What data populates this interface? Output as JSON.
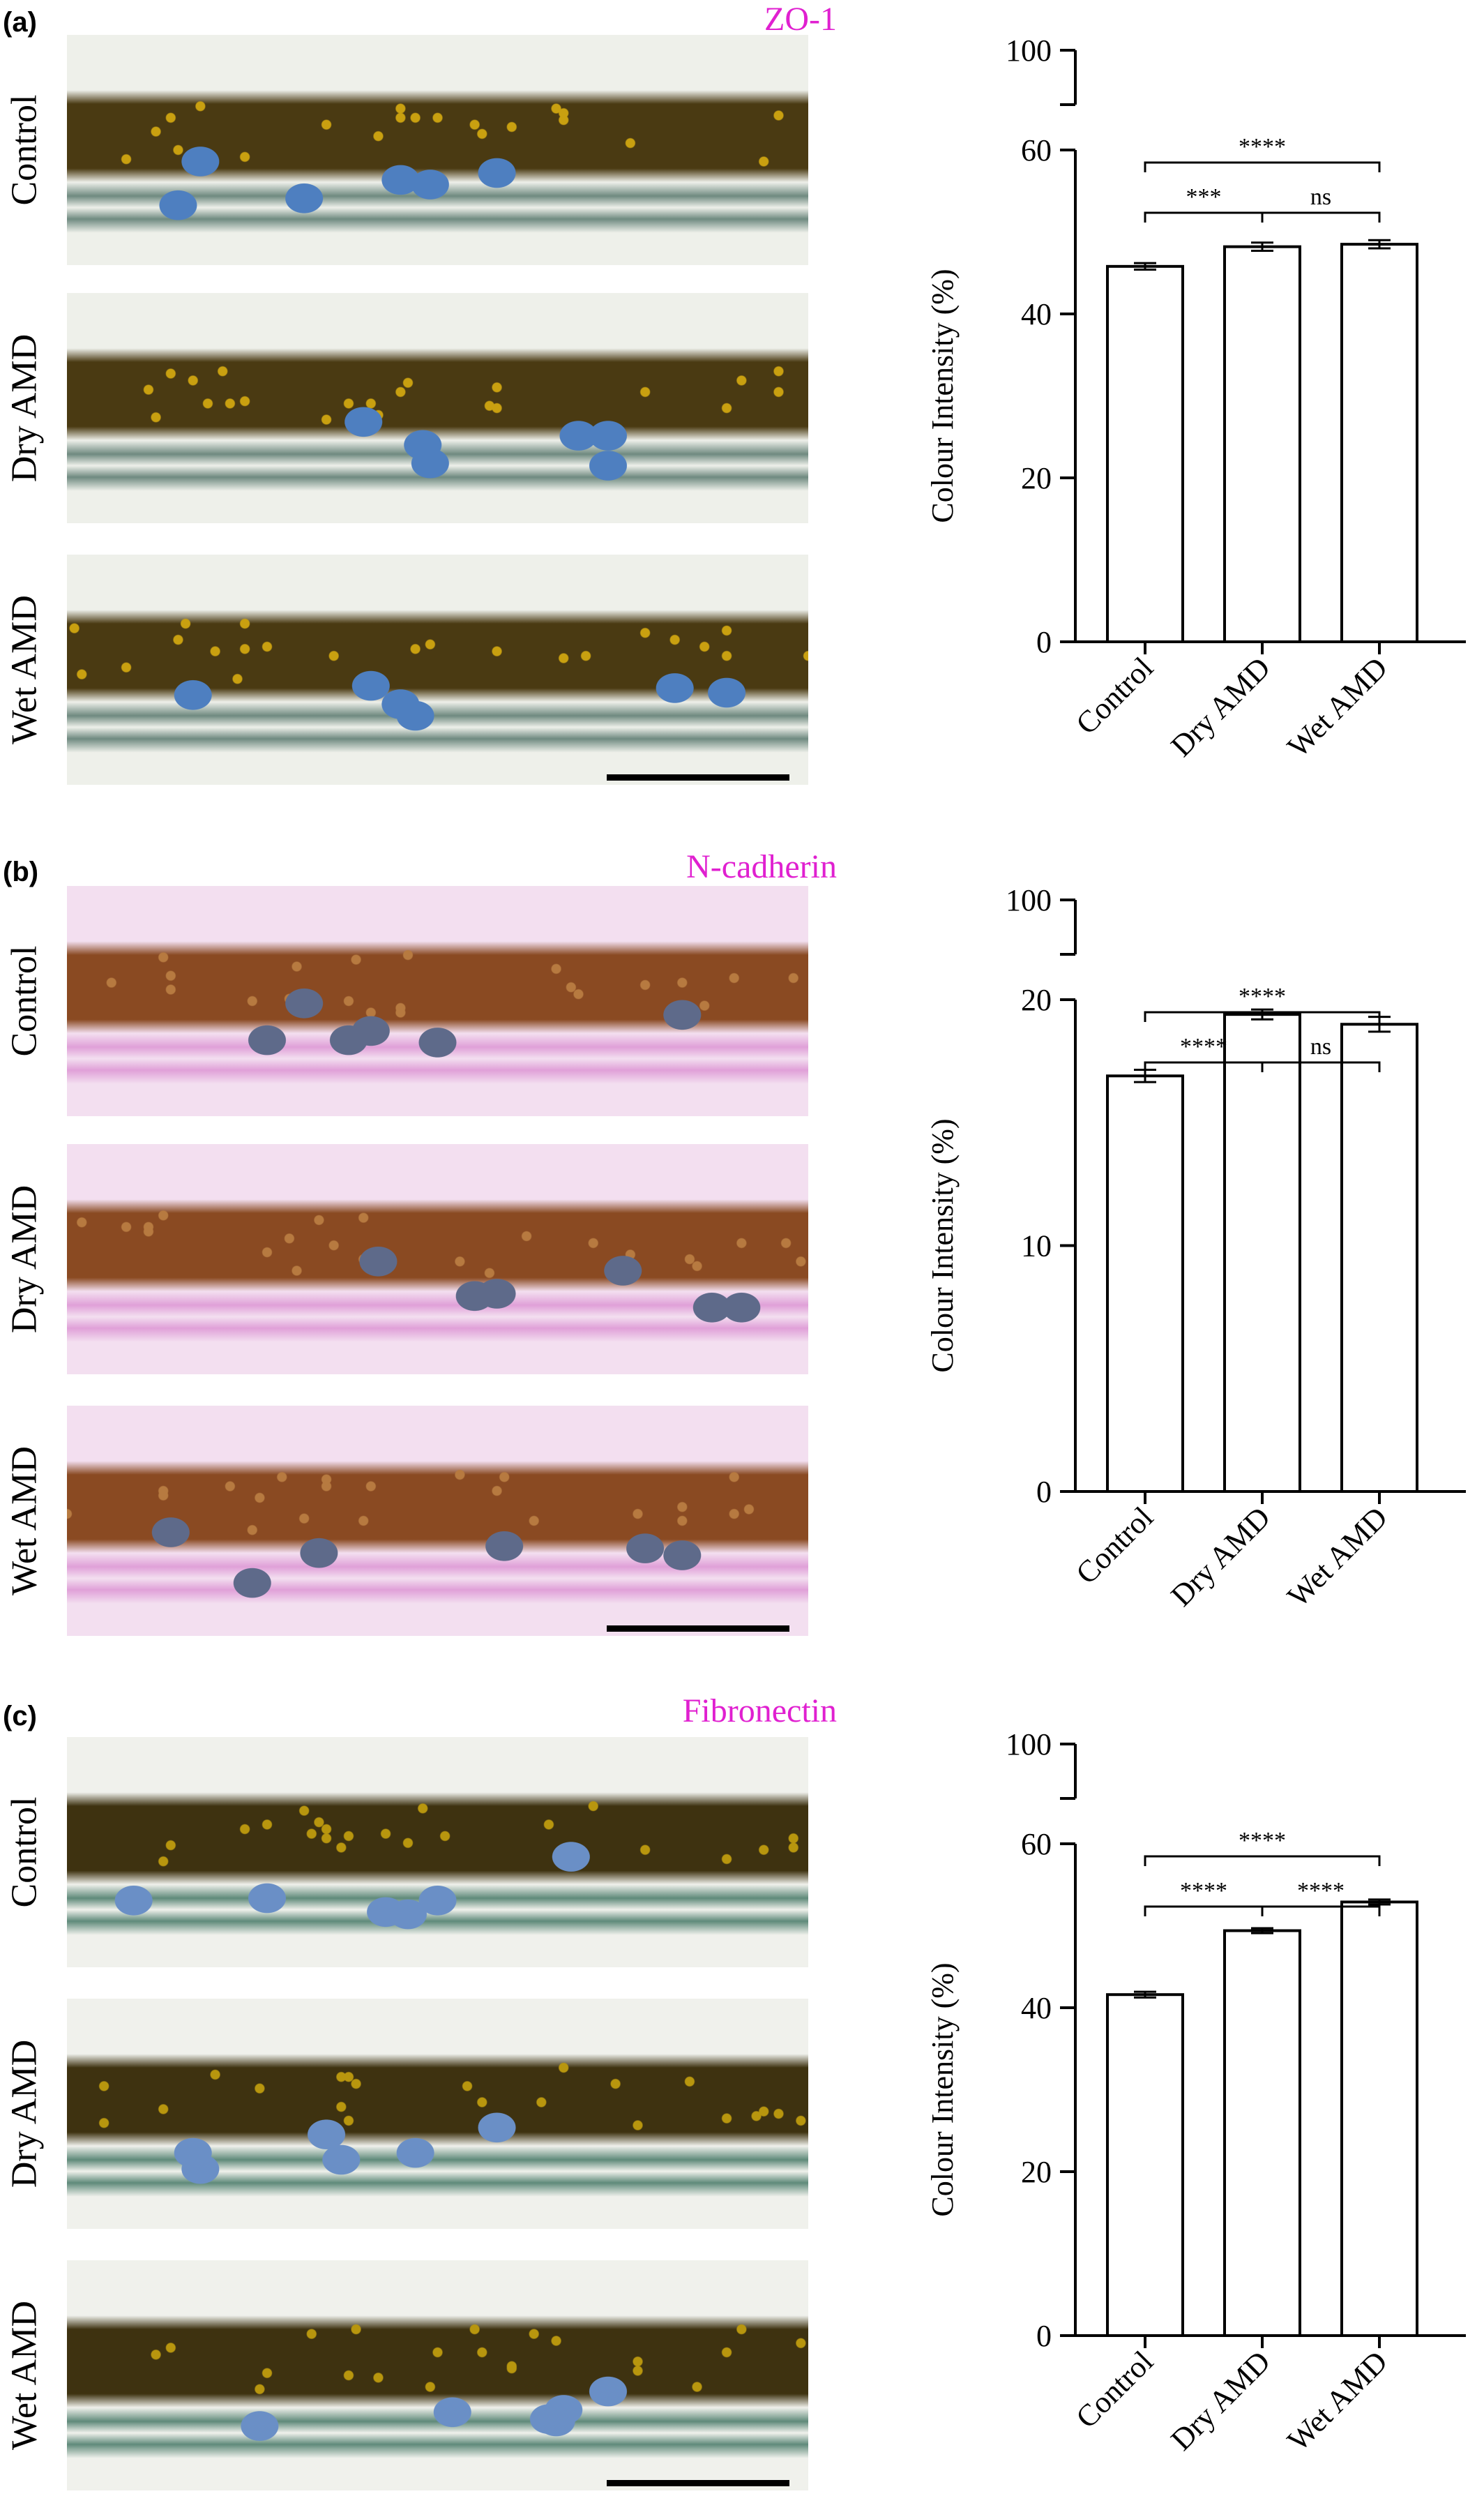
{
  "panels": [
    {
      "letter": "(a)",
      "stain": "ZO-1",
      "row_labels": [
        "Control",
        "Dry AMD",
        "Wet AMD"
      ],
      "colors": {
        "band": "#4a3a12",
        "band_spot": "#c9a010",
        "nucleus": "#4e7fc0",
        "bg": "#eef0ea",
        "membrane": "#6f8a80"
      },
      "chart_data": {
        "type": "bar",
        "categories": [
          "Control",
          "Dry AMD",
          "Wet AMD"
        ],
        "values": [
          45.8,
          48.2,
          48.5
        ],
        "errors": [
          0.4,
          0.5,
          0.5
        ],
        "ylabel": "Colour Intensity (%)",
        "y_ticks_lower": [
          0,
          20,
          40,
          60
        ],
        "y_ticks_upper": [
          100
        ],
        "ylim_lower": [
          0,
          60
        ],
        "axis_break": true,
        "significance": [
          {
            "from": 0,
            "to": 2,
            "label": "****"
          },
          {
            "from": 0,
            "to": 1,
            "label": "***"
          },
          {
            "from": 1,
            "to": 2,
            "label": "ns"
          }
        ]
      }
    },
    {
      "letter": "(b)",
      "stain": "N-cadherin",
      "row_labels": [
        "Control",
        "Dry AMD",
        "Wet AMD"
      ],
      "colors": {
        "band": "#8a4a22",
        "band_spot": "#b77a40",
        "nucleus": "#5e6a8a",
        "bg": "#f3dff0",
        "membrane": "#e0a0d8"
      },
      "chart_data": {
        "type": "bar",
        "categories": [
          "Control",
          "Dry AMD",
          "Wet AMD"
        ],
        "values": [
          16.9,
          19.4,
          19.0
        ],
        "errors": [
          0.25,
          0.2,
          0.3
        ],
        "ylabel": "Colour Intensity (%)",
        "y_ticks_lower": [
          0,
          10,
          20
        ],
        "y_ticks_upper": [
          100
        ],
        "ylim_lower": [
          0,
          20
        ],
        "axis_break": true,
        "significance": [
          {
            "from": 0,
            "to": 2,
            "label": "****"
          },
          {
            "from": 0,
            "to": 1,
            "label": "****"
          },
          {
            "from": 1,
            "to": 2,
            "label": "ns"
          }
        ]
      }
    },
    {
      "letter": "(c)",
      "stain": "Fibronectin",
      "row_labels": [
        "Control",
        "Dry AMD",
        "Wet AMD"
      ],
      "colors": {
        "band": "#3e3210",
        "band_spot": "#b8960e",
        "nucleus": "#6a8fc6",
        "bg": "#f0f1ec",
        "membrane": "#5f8a7a"
      },
      "chart_data": {
        "type": "bar",
        "categories": [
          "Control",
          "Dry AMD",
          "Wet AMD"
        ],
        "values": [
          41.6,
          49.4,
          52.9
        ],
        "errors": [
          0.35,
          0.3,
          0.3
        ],
        "ylabel": "Colour Intensity (%)",
        "y_ticks_lower": [
          0,
          20,
          40,
          60
        ],
        "y_ticks_upper": [
          100
        ],
        "ylim_lower": [
          0,
          60
        ],
        "axis_break": true,
        "significance": [
          {
            "from": 0,
            "to": 2,
            "label": "****"
          },
          {
            "from": 0,
            "to": 1,
            "label": "****"
          },
          {
            "from": 1,
            "to": 2,
            "label": "****"
          }
        ]
      }
    }
  ]
}
